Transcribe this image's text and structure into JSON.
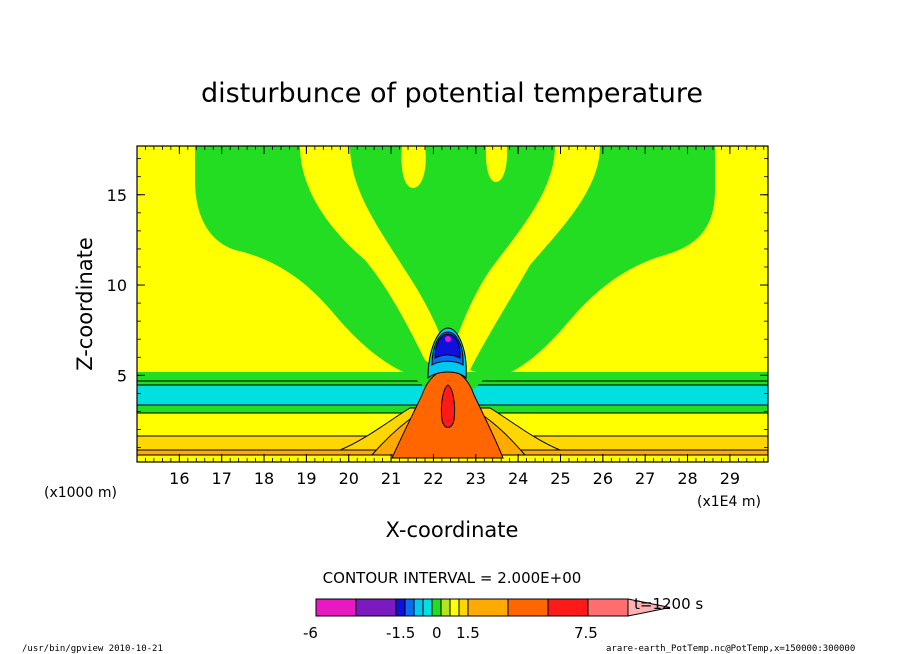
{
  "chart_data": {
    "type": "heatmap",
    "title": "disturbunce of potential temperature",
    "xlabel": "X-coordinate",
    "ylabel": "Z-coordinate",
    "x_unit_left": "(x1000 m)",
    "x_unit_right": "(x1E4 m)",
    "x_ticks": [
      "16",
      "17",
      "18",
      "19",
      "20",
      "21",
      "22",
      "23",
      "24",
      "25",
      "26",
      "27",
      "28",
      "29"
    ],
    "y_ticks": [
      "5",
      "10",
      "15"
    ],
    "xlim": [
      15.0,
      29.9
    ],
    "ylim": [
      0.2,
      17.7
    ],
    "contour_interval_text": "CONTOUR INTERVAL = 2.000E+00",
    "time_label": "t=1200 s",
    "colorbar": {
      "tick_labels": [
        "-6",
        "-1.5",
        "0",
        "1.5",
        "7.5"
      ],
      "colors": [
        "#e619c2",
        "#7b1bbf",
        "#1010dd",
        "#0a6bf0",
        "#00c8f0",
        "#00e0e0",
        "#22dd22",
        "#b5e41c",
        "#ffff00",
        "#ffd700",
        "#ffaa00",
        "#ff6600",
        "#ff1a1a",
        "#ff6f6f",
        "#ffb0b0"
      ]
    },
    "regions": [
      {
        "name": "positive-near-surface",
        "value_range": [
          0,
          1.5
        ],
        "color": "#ffff00"
      },
      {
        "name": "negative-layer",
        "z_range": [
          3.0,
          4.5
        ],
        "color": "#00e0e0"
      },
      {
        "name": "green-band-upper",
        "z_range": [
          4.5,
          5.2
        ],
        "color": "#22dd22"
      },
      {
        "name": "warm-core",
        "x_center": 22.4,
        "z_top": 5.3,
        "color": "#ff6600"
      },
      {
        "name": "cold-cap",
        "x_center": 22.4,
        "z_range": [
          5.5,
          7.5
        ],
        "color": "#1010dd"
      }
    ]
  },
  "footer": {
    "left": "/usr/bin/gpview   2010-10-21",
    "right": "arare-earth_PotTemp.nc@PotTemp,x=150000:300000"
  }
}
